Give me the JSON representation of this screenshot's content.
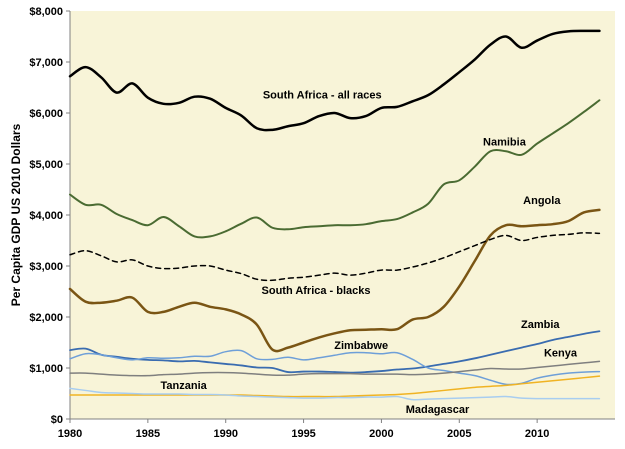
{
  "chart_data": {
    "type": "line",
    "title": "",
    "xlabel": "",
    "ylabel": "Per Capita GDP US 2010 Dollars",
    "xlim": [
      1980,
      2015
    ],
    "ylim": [
      0,
      8000
    ],
    "x_ticks": [
      1980,
      1985,
      1990,
      1995,
      2000,
      2005,
      2010
    ],
    "x_tick_labels": [
      "1980",
      "1985",
      "1990",
      "1995",
      "2000",
      "2005",
      "2010"
    ],
    "y_ticks": [
      0,
      1000,
      2000,
      3000,
      4000,
      5000,
      6000,
      7000,
      8000
    ],
    "y_tick_labels": [
      "$0",
      "$1,000",
      "$2,000",
      "$3,000",
      "$4,000",
      "$5,000",
      "$6,000",
      "$7,000",
      "$8,000"
    ],
    "grid": false,
    "legend": "none",
    "plot_background": "#f8f4d8",
    "series": [
      {
        "name": "South Africa - all races",
        "color": "#000000",
        "width": 2.5,
        "dash": "",
        "label_x": 1996.2,
        "label_y": 6280,
        "x": [
          1980,
          1981,
          1982,
          1983,
          1984,
          1985,
          1986,
          1987,
          1988,
          1989,
          1990,
          1991,
          1992,
          1993,
          1994,
          1995,
          1996,
          1997,
          1998,
          1999,
          2000,
          2001,
          2002,
          2003,
          2004,
          2005,
          2006,
          2007,
          2008,
          2009,
          2010,
          2011,
          2012,
          2013,
          2014
        ],
        "y": [
          6720,
          6900,
          6700,
          6400,
          6580,
          6300,
          6180,
          6200,
          6320,
          6280,
          6100,
          5950,
          5700,
          5670,
          5740,
          5800,
          5940,
          6000,
          5900,
          5940,
          6100,
          6120,
          6230,
          6350,
          6560,
          6800,
          7050,
          7340,
          7500,
          7280,
          7420,
          7550,
          7600,
          7610,
          7610
        ]
      },
      {
        "name": "Namibia",
        "color": "#4a6b32",
        "width": 2,
        "dash": "",
        "label_x": 2007.9,
        "label_y": 5360,
        "x": [
          1980,
          1981,
          1982,
          1983,
          1984,
          1985,
          1986,
          1987,
          1988,
          1989,
          1990,
          1991,
          1992,
          1993,
          1994,
          1995,
          1996,
          1997,
          1998,
          1999,
          2000,
          2001,
          2002,
          2003,
          2004,
          2005,
          2006,
          2007,
          2008,
          2009,
          2010,
          2011,
          2012,
          2013,
          2014
        ],
        "y": [
          4400,
          4200,
          4200,
          4020,
          3900,
          3800,
          3960,
          3780,
          3580,
          3580,
          3680,
          3830,
          3950,
          3750,
          3720,
          3760,
          3780,
          3800,
          3800,
          3820,
          3880,
          3920,
          4050,
          4220,
          4600,
          4680,
          4950,
          5250,
          5250,
          5180,
          5400,
          5600,
          5800,
          6020,
          6250
        ]
      },
      {
        "name": "Angola",
        "color": "#7a5514",
        "width": 2.5,
        "dash": "",
        "label_x": 2010.3,
        "label_y": 4220,
        "x": [
          1980,
          1981,
          1982,
          1983,
          1984,
          1985,
          1986,
          1987,
          1988,
          1989,
          1990,
          1991,
          1992,
          1993,
          1994,
          1995,
          1996,
          1997,
          1998,
          1999,
          2000,
          2001,
          2002,
          2003,
          2004,
          2005,
          2006,
          2007,
          2008,
          2009,
          2010,
          2011,
          2012,
          2013,
          2014
        ],
        "y": [
          2550,
          2300,
          2280,
          2320,
          2380,
          2100,
          2100,
          2200,
          2280,
          2200,
          2150,
          2050,
          1850,
          1360,
          1400,
          1500,
          1600,
          1680,
          1740,
          1750,
          1760,
          1760,
          1950,
          2000,
          2200,
          2600,
          3100,
          3600,
          3800,
          3780,
          3800,
          3820,
          3880,
          4050,
          4100
        ]
      },
      {
        "name": "South Africa - blacks",
        "color": "#000000",
        "width": 1.5,
        "dash": "5,4",
        "label_x": 1995.8,
        "label_y": 2450,
        "x": [
          1980,
          1981,
          1982,
          1983,
          1984,
          1985,
          1986,
          1987,
          1988,
          1989,
          1990,
          1991,
          1992,
          1993,
          1994,
          1995,
          1996,
          1997,
          1998,
          1999,
          2000,
          2001,
          2002,
          2003,
          2004,
          2005,
          2006,
          2007,
          2008,
          2009,
          2010,
          2011,
          2012,
          2013,
          2014
        ],
        "y": [
          3220,
          3300,
          3200,
          3080,
          3120,
          3000,
          2950,
          2960,
          3000,
          3000,
          2920,
          2850,
          2740,
          2720,
          2760,
          2780,
          2820,
          2860,
          2820,
          2860,
          2920,
          2920,
          2980,
          3060,
          3160,
          3280,
          3400,
          3520,
          3600,
          3500,
          3560,
          3600,
          3620,
          3650,
          3640
        ]
      },
      {
        "name": "Zambia",
        "color": "#3a6cb0",
        "width": 1.8,
        "dash": "",
        "label_x": 2010.2,
        "label_y": 1780,
        "x": [
          1980,
          1981,
          1982,
          1983,
          1984,
          1985,
          1986,
          1987,
          1988,
          1989,
          1990,
          1991,
          1992,
          1993,
          1994,
          1995,
          1996,
          1997,
          1998,
          1999,
          2000,
          2001,
          2002,
          2003,
          2004,
          2005,
          2006,
          2007,
          2008,
          2009,
          2010,
          2011,
          2012,
          2013,
          2014
        ],
        "y": [
          1350,
          1380,
          1260,
          1220,
          1180,
          1160,
          1150,
          1130,
          1140,
          1110,
          1080,
          1050,
          1010,
          1000,
          920,
          930,
          930,
          920,
          910,
          920,
          940,
          970,
          990,
          1030,
          1080,
          1130,
          1190,
          1260,
          1330,
          1400,
          1470,
          1550,
          1610,
          1670,
          1720
        ]
      },
      {
        "name": "Zimbabwe",
        "color": "#6e9fd8",
        "width": 1.5,
        "dash": "",
        "label_x": 1998.7,
        "label_y": 1370,
        "x": [
          1980,
          1981,
          1982,
          1983,
          1984,
          1985,
          1986,
          1987,
          1988,
          1989,
          1990,
          1991,
          1992,
          1993,
          1994,
          1995,
          1996,
          1997,
          1998,
          1999,
          2000,
          2001,
          2002,
          2003,
          2004,
          2005,
          2006,
          2007,
          2008,
          2009,
          2010,
          2011,
          2012,
          2013,
          2014
        ],
        "y": [
          1180,
          1280,
          1260,
          1200,
          1160,
          1200,
          1190,
          1200,
          1230,
          1230,
          1320,
          1340,
          1180,
          1170,
          1210,
          1160,
          1200,
          1250,
          1300,
          1300,
          1280,
          1300,
          1170,
          1000,
          950,
          900,
          850,
          760,
          680,
          700,
          800,
          860,
          900,
          920,
          930
        ]
      },
      {
        "name": "Kenya",
        "color": "#7f7f7f",
        "width": 1.5,
        "dash": "",
        "label_x": 2011.5,
        "label_y": 1230,
        "x": [
          1980,
          1981,
          1982,
          1983,
          1984,
          1985,
          1986,
          1987,
          1988,
          1989,
          1990,
          1991,
          1992,
          1993,
          1994,
          1995,
          1996,
          1997,
          1998,
          1999,
          2000,
          2001,
          2002,
          2003,
          2004,
          2005,
          2006,
          2007,
          2008,
          2009,
          2010,
          2011,
          2012,
          2013,
          2014
        ],
        "y": [
          900,
          900,
          880,
          860,
          850,
          850,
          870,
          880,
          900,
          910,
          910,
          900,
          880,
          860,
          860,
          880,
          890,
          890,
          890,
          880,
          880,
          880,
          870,
          880,
          900,
          930,
          960,
          990,
          980,
          980,
          1010,
          1040,
          1070,
          1100,
          1130
        ]
      },
      {
        "name": "Tanzania",
        "color": "#f0b323",
        "width": 1.5,
        "dash": "",
        "label_x": 1987.3,
        "label_y": 590,
        "x": [
          1980,
          1981,
          1982,
          1983,
          1984,
          1985,
          1986,
          1987,
          1988,
          1989,
          1990,
          1991,
          1992,
          1993,
          1994,
          1995,
          1996,
          1997,
          1998,
          1999,
          2000,
          2001,
          2002,
          2003,
          2004,
          2005,
          2006,
          2007,
          2008,
          2009,
          2010,
          2011,
          2012,
          2013,
          2014
        ],
        "y": [
          470,
          470,
          470,
          470,
          470,
          470,
          470,
          470,
          470,
          470,
          470,
          470,
          460,
          450,
          440,
          440,
          440,
          440,
          450,
          460,
          470,
          480,
          500,
          530,
          560,
          590,
          620,
          640,
          660,
          690,
          720,
          750,
          780,
          810,
          840
        ]
      },
      {
        "name": "Madagascar",
        "color": "#a8cdf0",
        "width": 1.5,
        "dash": "",
        "label_x": 2003.6,
        "label_y": 120,
        "x": [
          1980,
          1981,
          1982,
          1983,
          1984,
          1985,
          1986,
          1987,
          1988,
          1989,
          1990,
          1991,
          1992,
          1993,
          1994,
          1995,
          1996,
          1997,
          1998,
          1999,
          2000,
          2001,
          2002,
          2003,
          2004,
          2005,
          2006,
          2007,
          2008,
          2009,
          2010,
          2011,
          2012,
          2013,
          2014
        ],
        "y": [
          600,
          560,
          520,
          510,
          500,
          490,
          490,
          490,
          480,
          480,
          470,
          450,
          440,
          430,
          420,
          410,
          410,
          420,
          420,
          430,
          430,
          440,
          380,
          390,
          400,
          410,
          420,
          430,
          440,
          410,
          400,
          400,
          400,
          400,
          400
        ]
      }
    ]
  }
}
